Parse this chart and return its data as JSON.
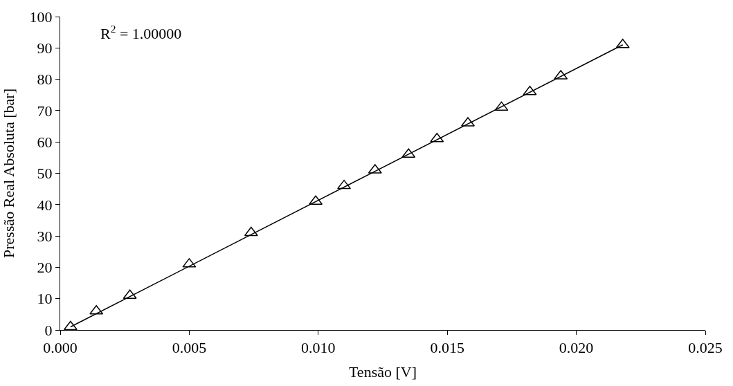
{
  "chart_data": {
    "type": "scatter",
    "xlabel": "Tensão [V]",
    "ylabel": "Pressão Real Absoluta [bar]",
    "annotations": [
      "R$^{2}$ = 1.00000"
    ],
    "xlim": [
      0,
      0.025
    ],
    "xticks": [
      {
        "value": 0,
        "label": "0.000"
      },
      {
        "value": 0.005,
        "label": "0.005"
      },
      {
        "value": 0.01,
        "label": "0.010"
      },
      {
        "value": 0.015,
        "label": "0.015"
      },
      {
        "value": 0.02,
        "label": "0.020"
      },
      {
        "value": 0.025,
        "label": "0.025"
      }
    ],
    "ylim": [
      0,
      100
    ],
    "yticks": [
      0,
      10,
      20,
      30,
      40,
      50,
      60,
      70,
      80,
      90,
      100
    ],
    "series": [
      {
        "marker": "triangle",
        "color": "#000000",
        "x": [
          0.0004,
          0.0014,
          0.0027,
          0.005,
          0.0074,
          0.0099,
          0.011,
          0.0122,
          0.0135,
          0.0146,
          0.0158,
          0.0171,
          0.0182,
          0.0194,
          0.0218
        ],
        "values": [
          1,
          6,
          11,
          21,
          31,
          41,
          46,
          51,
          56,
          61,
          66,
          71,
          76,
          81,
          91
        ]
      },
      {
        "type": "line",
        "marker": "none",
        "color": "#000000",
        "x": [
          0.0004,
          0.0218
        ],
        "values": [
          1,
          91
        ]
      }
    ]
  }
}
